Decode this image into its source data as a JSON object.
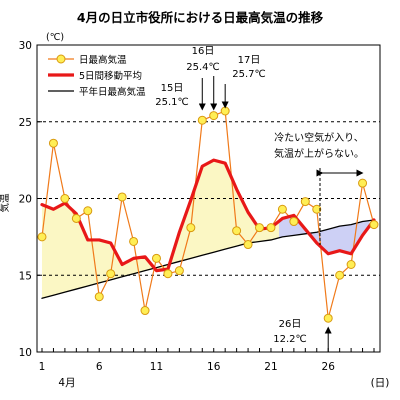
{
  "chart_data": {
    "type": "line",
    "title": "4月の日立市役所における日最高気温の推移",
    "unit_label": "(℃)",
    "ylabel": "気温",
    "xlabel": "(日)",
    "month_label": "4月",
    "ylim": [
      10,
      30
    ],
    "xlim": [
      1,
      30
    ],
    "y_ticks": [
      10,
      15,
      20,
      25,
      30
    ],
    "x_ticks": [
      1,
      6,
      11,
      16,
      21,
      26
    ],
    "grid": "y-dashed",
    "legend_position": "top-left",
    "x": [
      1,
      2,
      3,
      4,
      5,
      6,
      7,
      8,
      9,
      10,
      11,
      12,
      13,
      14,
      15,
      16,
      17,
      18,
      19,
      20,
      21,
      22,
      23,
      24,
      25,
      26,
      27,
      28,
      29,
      30
    ],
    "series": [
      {
        "name": "日最高気温",
        "color": "#f07a1a",
        "marker_color": "#ffee55",
        "values": [
          17.5,
          23.6,
          20.0,
          18.7,
          19.2,
          13.6,
          15.1,
          20.1,
          17.2,
          12.7,
          16.1,
          15.1,
          15.3,
          18.1,
          25.1,
          25.4,
          25.7,
          17.9,
          17.0,
          18.1,
          18.1,
          19.3,
          18.5,
          19.8,
          19.3,
          12.2,
          15.0,
          15.7,
          21.0,
          18.3
        ]
      },
      {
        "name": "5日間移動平均",
        "color": "#e81818",
        "values": [
          19.6,
          19.3,
          19.7,
          19.0,
          17.3,
          17.3,
          17.1,
          15.7,
          16.1,
          16.2,
          15.3,
          15.4,
          17.8,
          19.9,
          22.1,
          22.5,
          22.3,
          20.6,
          19.1,
          18.0,
          18.1,
          18.7,
          18.9,
          18.0,
          17.1,
          16.4,
          16.6,
          16.4,
          17.6,
          18.6
        ]
      },
      {
        "name": "平年日最高気温",
        "color": "#000000",
        "values": [
          13.5,
          13.7,
          13.9,
          14.1,
          14.3,
          14.5,
          14.7,
          14.9,
          15.1,
          15.3,
          15.5,
          15.7,
          15.9,
          16.1,
          16.3,
          16.5,
          16.7,
          16.9,
          17.1,
          17.2,
          17.3,
          17.5,
          17.6,
          17.7,
          17.8,
          18.0,
          18.2,
          18.3,
          18.5,
          18.6
        ]
      }
    ],
    "annotations": [
      {
        "day": 15,
        "text_day": "15日",
        "text_value": "25.1℃"
      },
      {
        "day": 16,
        "text_day": "16日",
        "text_value": "25.4℃"
      },
      {
        "day": 17,
        "text_day": "17日",
        "text_value": "25.7℃"
      },
      {
        "day": 26,
        "text_day": "26日",
        "text_value": "12.2℃"
      }
    ],
    "note": [
      "冷たい空気が入り、",
      "気温が上がらない。"
    ]
  }
}
